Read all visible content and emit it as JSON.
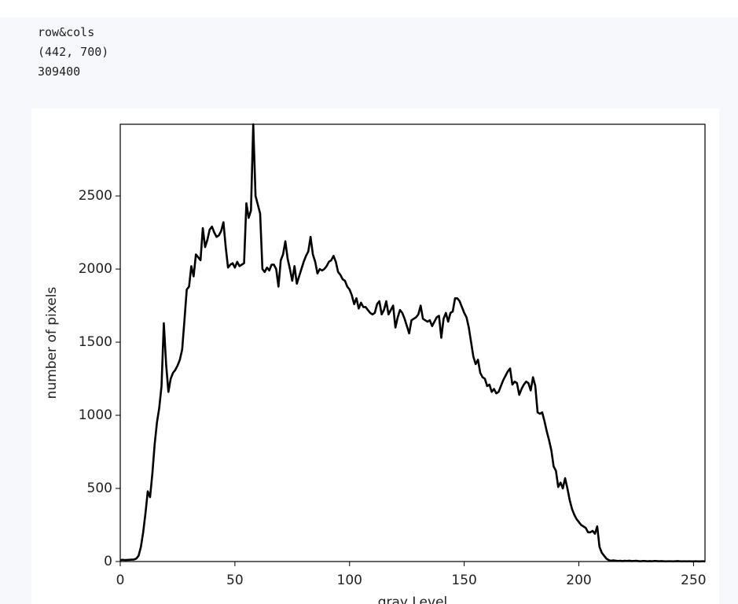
{
  "output": {
    "lines": [
      "row&cols",
      "(442, 700)",
      "309400"
    ]
  },
  "chart_data": {
    "type": "line",
    "xlabel": "gray Level",
    "ylabel": "number of pixels",
    "color": "#000000",
    "x": [
      0,
      1,
      2,
      3,
      4,
      5,
      6,
      7,
      8,
      9,
      10,
      11,
      12,
      13,
      14,
      15,
      16,
      17,
      18,
      19,
      20,
      21,
      22,
      23,
      24,
      25,
      26,
      27,
      28,
      29,
      30,
      31,
      32,
      33,
      34,
      35,
      36,
      37,
      38,
      39,
      40,
      41,
      42,
      43,
      44,
      45,
      46,
      47,
      48,
      49,
      50,
      51,
      52,
      53,
      54,
      55,
      56,
      57,
      58,
      59,
      60,
      61,
      62,
      63,
      64,
      65,
      66,
      67,
      68,
      69,
      70,
      71,
      72,
      73,
      74,
      75,
      76,
      77,
      78,
      79,
      80,
      81,
      82,
      83,
      84,
      85,
      86,
      87,
      88,
      89,
      90,
      91,
      92,
      93,
      94,
      95,
      96,
      97,
      98,
      99,
      100,
      101,
      102,
      103,
      104,
      105,
      106,
      107,
      108,
      109,
      110,
      111,
      112,
      113,
      114,
      115,
      116,
      117,
      118,
      119,
      120,
      121,
      122,
      123,
      124,
      125,
      126,
      127,
      128,
      129,
      130,
      131,
      132,
      133,
      134,
      135,
      136,
      137,
      138,
      139,
      140,
      141,
      142,
      143,
      144,
      145,
      146,
      147,
      148,
      149,
      150,
      151,
      152,
      153,
      154,
      155,
      156,
      157,
      158,
      159,
      160,
      161,
      162,
      163,
      164,
      165,
      166,
      167,
      168,
      169,
      170,
      171,
      172,
      173,
      174,
      175,
      176,
      177,
      178,
      179,
      180,
      181,
      182,
      183,
      184,
      185,
      186,
      187,
      188,
      189,
      190,
      191,
      192,
      193,
      194,
      195,
      196,
      197,
      198,
      199,
      200,
      201,
      202,
      203,
      204,
      205,
      206,
      207,
      208,
      209,
      210,
      211,
      212,
      213,
      214,
      215,
      216,
      217,
      218,
      219,
      220,
      221,
      222,
      223,
      224,
      225,
      226,
      227,
      228,
      229,
      230,
      231,
      232,
      233,
      234,
      235,
      236,
      237,
      238,
      239,
      240,
      241,
      242,
      243,
      244,
      245,
      246,
      247,
      248,
      249,
      250,
      251,
      252,
      253,
      254,
      255
    ],
    "values": [
      10,
      12,
      10,
      11,
      12,
      13,
      14,
      20,
      40,
      100,
      200,
      330,
      480,
      440,
      600,
      800,
      950,
      1050,
      1200,
      1630,
      1350,
      1160,
      1250,
      1290,
      1310,
      1340,
      1380,
      1450,
      1650,
      1860,
      1880,
      2020,
      1950,
      2100,
      2080,
      2060,
      2280,
      2150,
      2200,
      2270,
      2290,
      2250,
      2220,
      2230,
      2260,
      2320,
      2150,
      2010,
      2030,
      2040,
      2010,
      2050,
      2020,
      2030,
      2040,
      2450,
      2350,
      2400,
      2990,
      2500,
      2440,
      2380,
      2000,
      1980,
      2010,
      1990,
      2030,
      2030,
      2000,
      1880,
      2060,
      2100,
      2190,
      2070,
      2000,
      1920,
      2020,
      1900,
      1950,
      2000,
      2050,
      2090,
      2120,
      2220,
      2100,
      2050,
      1970,
      2000,
      1990,
      2000,
      2020,
      2050,
      2060,
      2090,
      2050,
      1980,
      1960,
      1930,
      1920,
      1880,
      1860,
      1820,
      1760,
      1800,
      1730,
      1770,
      1740,
      1740,
      1720,
      1700,
      1690,
      1700,
      1760,
      1780,
      1690,
      1720,
      1780,
      1690,
      1720,
      1750,
      1600,
      1670,
      1720,
      1700,
      1660,
      1610,
      1560,
      1650,
      1660,
      1670,
      1690,
      1750,
      1660,
      1650,
      1640,
      1650,
      1610,
      1640,
      1670,
      1680,
      1530,
      1660,
      1700,
      1640,
      1700,
      1710,
      1800,
      1800,
      1780,
      1740,
      1700,
      1670,
      1600,
      1500,
      1400,
      1350,
      1380,
      1290,
      1260,
      1250,
      1200,
      1210,
      1160,
      1180,
      1150,
      1160,
      1200,
      1240,
      1270,
      1300,
      1320,
      1210,
      1230,
      1220,
      1140,
      1180,
      1210,
      1230,
      1220,
      1170,
      1260,
      1200,
      1020,
      1010,
      1020,
      960,
      890,
      830,
      760,
      650,
      620,
      510,
      540,
      500,
      570,
      500,
      420,
      360,
      320,
      290,
      270,
      250,
      240,
      230,
      200,
      200,
      210,
      190,
      240,
      100,
      60,
      40,
      20,
      10,
      5,
      8,
      6,
      4,
      5,
      3,
      5,
      4,
      6,
      3,
      4,
      5,
      3,
      2,
      4,
      3,
      2,
      3,
      2,
      4,
      3,
      2,
      3,
      2,
      1,
      2,
      2,
      1,
      2,
      3,
      2,
      1,
      2,
      1,
      2,
      1,
      1,
      2,
      1,
      1,
      2,
      1
    ],
    "xlim": [
      0,
      255
    ],
    "ylim": [
      0,
      2990
    ],
    "xticks": [
      0,
      50,
      100,
      150,
      200,
      250
    ],
    "yticks": [
      0,
      500,
      1000,
      1500,
      2000,
      2500
    ]
  }
}
